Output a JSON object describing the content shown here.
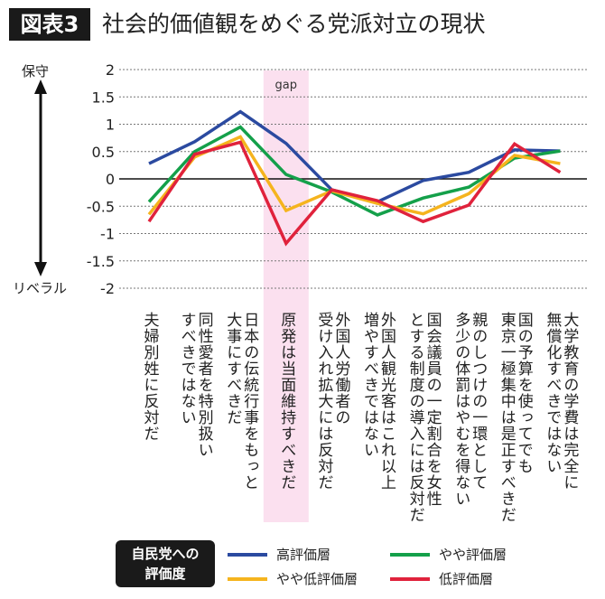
{
  "header": {
    "badge": "図表3",
    "title": "社会的価値観をめぐる党派対立の現状"
  },
  "side_labels": {
    "top": "保守",
    "bottom": "リベラル"
  },
  "highlight_label": "gap",
  "legend": {
    "title": "自民党への\n評価度"
  },
  "chart_data": {
    "type": "line",
    "title": "社会的価値観をめぐる党派対立の現状",
    "ylim": [
      -2,
      2
    ],
    "yticks": [
      "2",
      "1.5",
      "1",
      "0.5",
      "0",
      "-0.5",
      "-1",
      "-1.5",
      "-2"
    ],
    "ytick_values": [
      2,
      1.5,
      1,
      0.5,
      0,
      -0.5,
      -1,
      -1.5,
      -2
    ],
    "grid": true,
    "legend_position": "bottom",
    "highlight_category_index": 3,
    "categories": [
      "夫婦別姓に反対だ",
      "同性愛者を特別扱い\nすべきではない",
      "日本の伝統行事をもっと\n大事にすべきだ",
      "原発は当面維持すべきだ",
      "外国人労働者の\n受け入れ拡大には反対だ",
      "外国人観光客はこれ以上\n増やすべきではない",
      "国会議員の一定割合を女性\nとする制度の導入には反対だ",
      "親のしつけの一環として\n多少の体罰はやむを得ない",
      "国の予算を使ってでも\n東京一極集中は是正すべきだ",
      "大学教育の学費は完全に\n無償化すべきではない"
    ],
    "series": [
      {
        "name": "高評価層",
        "color": "#2b4aa0",
        "values": [
          0.28,
          0.68,
          1.23,
          0.65,
          -0.2,
          -0.42,
          -0.03,
          0.12,
          0.53,
          0.51
        ]
      },
      {
        "name": "やや評価層",
        "color": "#14a04a",
        "values": [
          -0.42,
          0.5,
          0.95,
          0.08,
          -0.24,
          -0.66,
          -0.35,
          -0.15,
          0.38,
          0.51
        ]
      },
      {
        "name": "やや低評価層",
        "color": "#f5b41e",
        "values": [
          -0.65,
          0.4,
          0.77,
          -0.58,
          -0.22,
          -0.45,
          -0.64,
          -0.27,
          0.43,
          0.28
        ]
      },
      {
        "name": "低評価層",
        "color": "#e0223c",
        "values": [
          -0.78,
          0.45,
          0.67,
          -1.18,
          -0.2,
          -0.4,
          -0.78,
          -0.48,
          0.64,
          0.12
        ]
      }
    ]
  }
}
